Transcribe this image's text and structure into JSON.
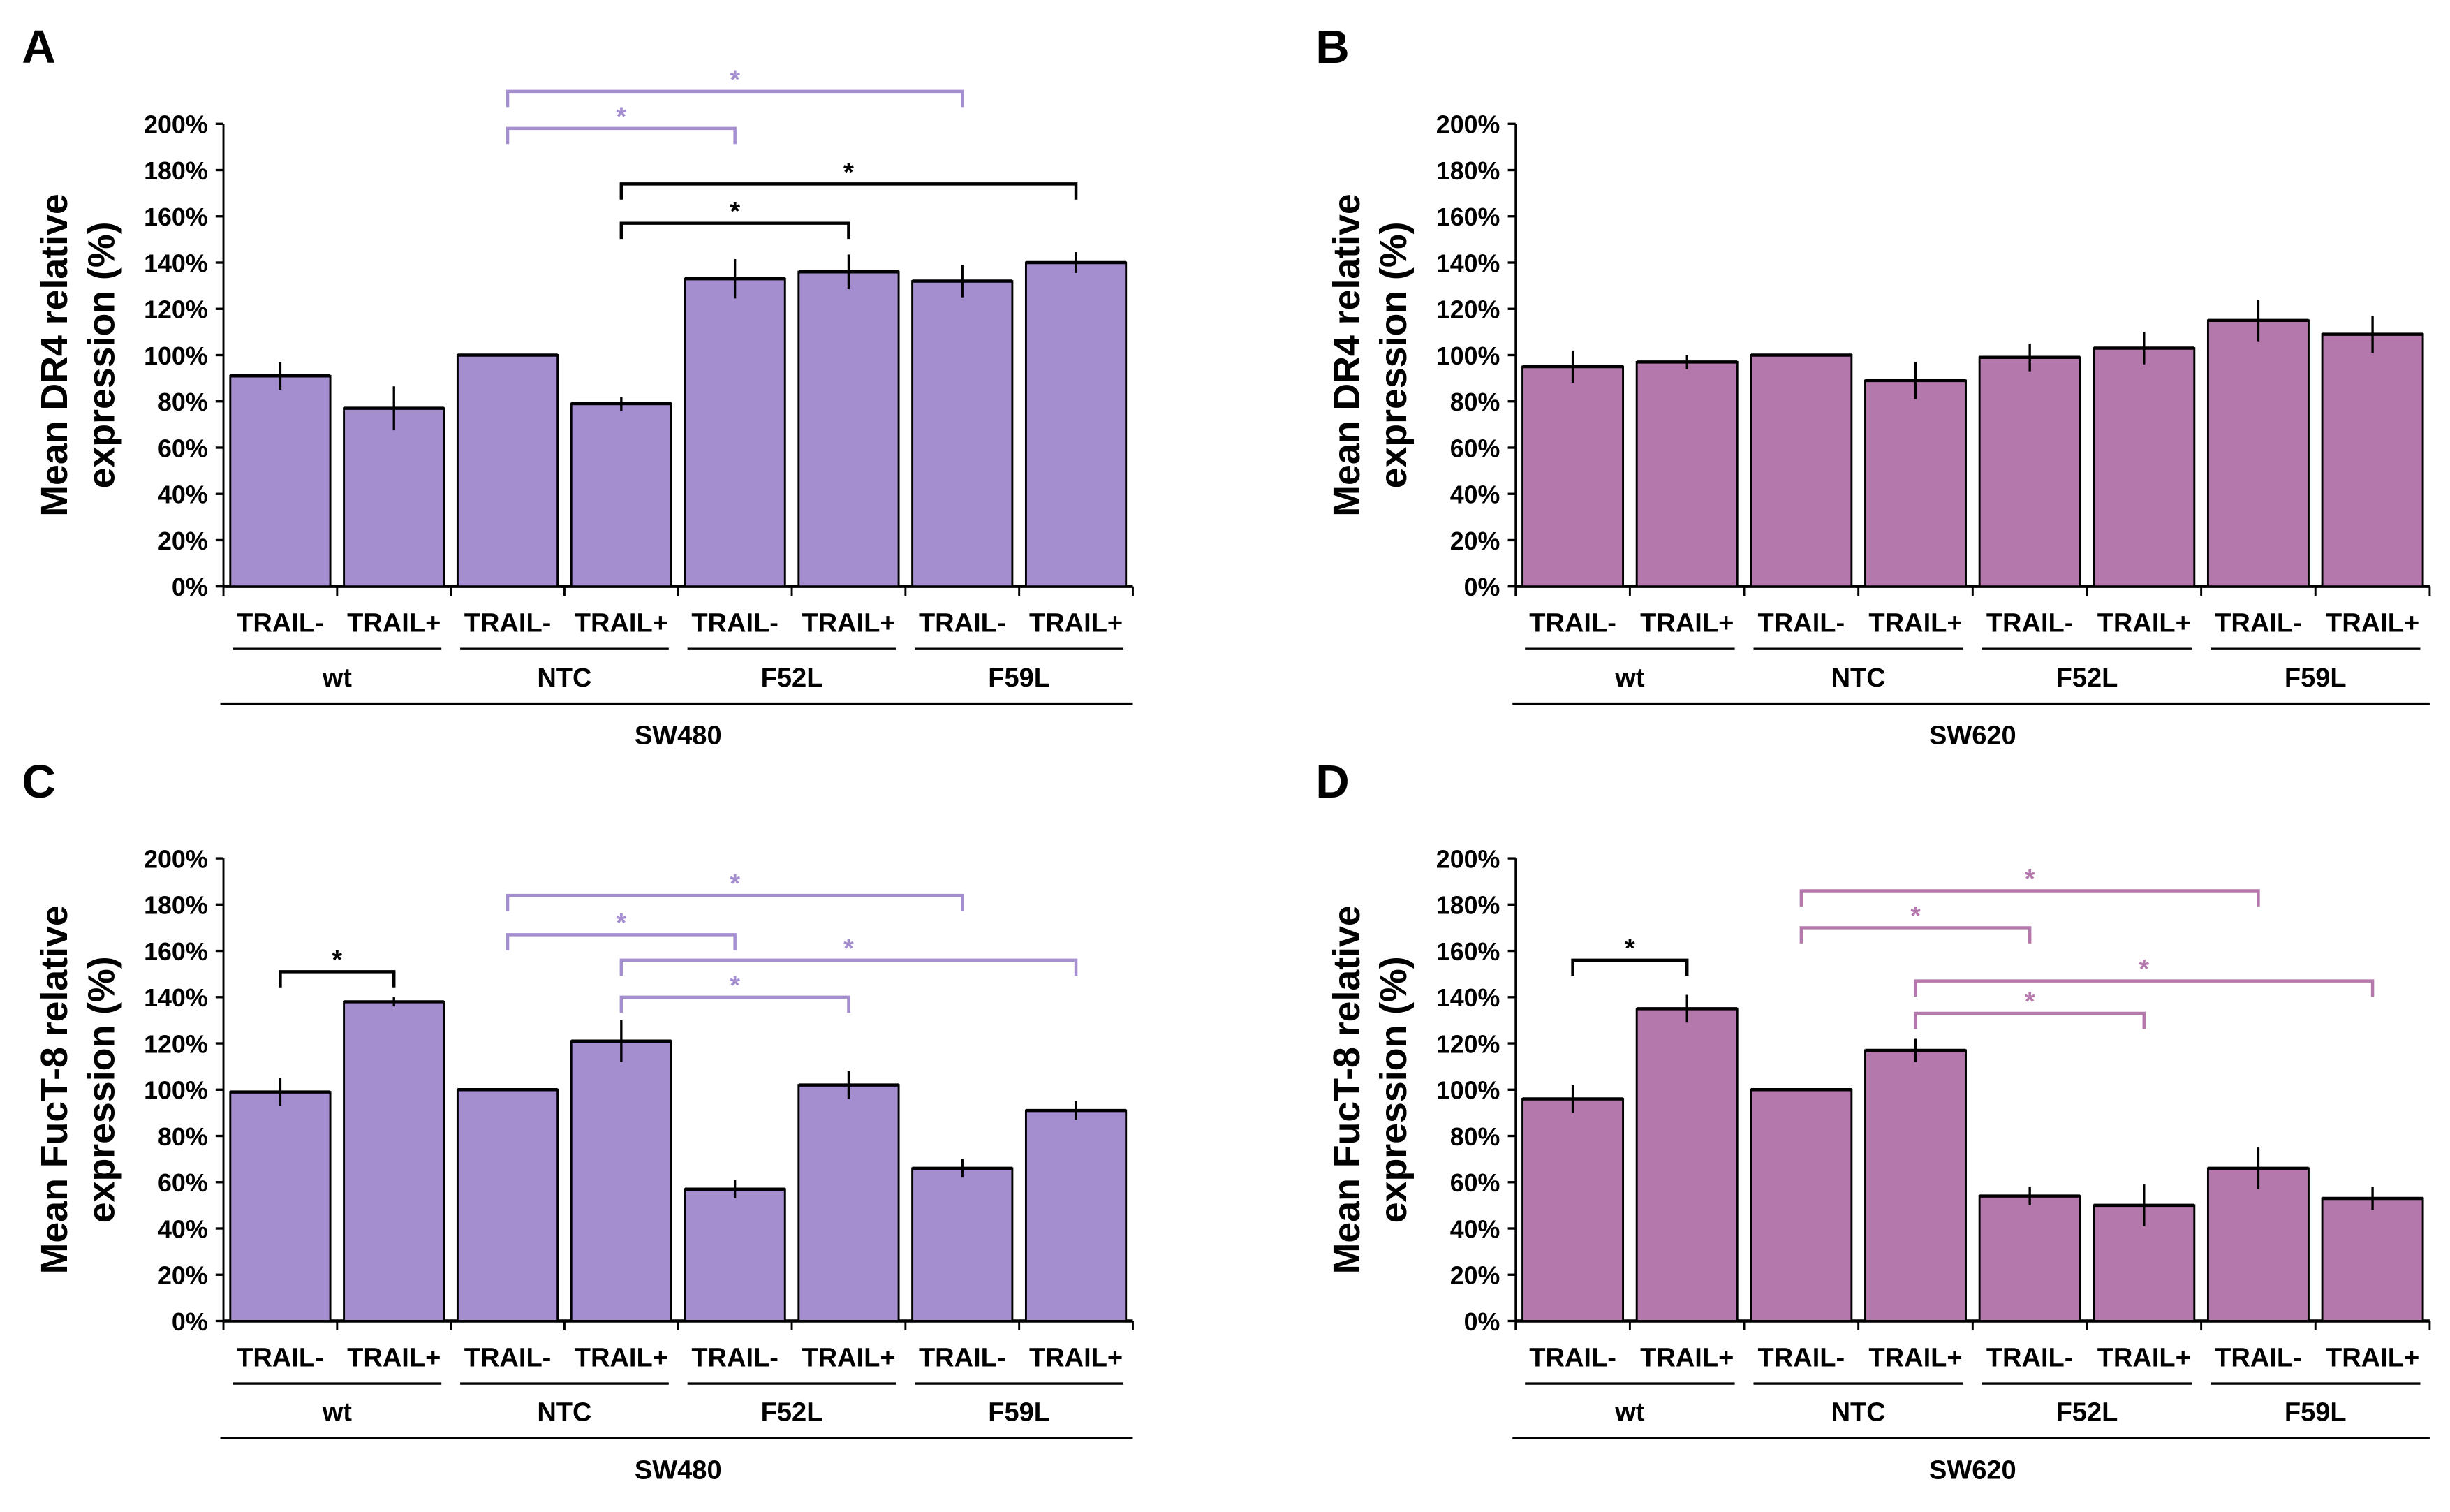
{
  "chart_data": [
    {
      "panel": "A",
      "type": "bar",
      "ylabel": [
        "Mean DR4 relative",
        "expression (%)"
      ],
      "ylim": [
        0,
        200
      ],
      "yticks": [
        0,
        20,
        40,
        60,
        80,
        100,
        120,
        140,
        160,
        180,
        200
      ],
      "ytick_suffix": "%",
      "categories": [
        "TRAIL-",
        "TRAIL+",
        "TRAIL-",
        "TRAIL+",
        "TRAIL-",
        "TRAIL+",
        "TRAIL-",
        "TRAIL+"
      ],
      "groups": [
        "wt",
        "NTC",
        "F52L",
        "F59L"
      ],
      "cell_line": "SW480",
      "color": "#A48ED0",
      "values": [
        91,
        77,
        100,
        79,
        133,
        136,
        132,
        140
      ],
      "errors": [
        6,
        9.5,
        0,
        3,
        8.5,
        7.5,
        7,
        4.5
      ],
      "significance": [
        {
          "from": 2,
          "to": 6,
          "level": 214,
          "label": "*",
          "color": "#A48ED0"
        },
        {
          "from": 2,
          "to": 4,
          "level": 198,
          "label": "*",
          "color": "#A48ED0"
        },
        {
          "from": 3,
          "to": 7,
          "level": 174,
          "label": "*",
          "color": "#000000"
        },
        {
          "from": 3,
          "to": 5,
          "level": 157,
          "label": "*",
          "color": "#000000"
        }
      ]
    },
    {
      "panel": "B",
      "type": "bar",
      "ylabel": [
        "Mean DR4 relative",
        "expression (%)"
      ],
      "ylim": [
        0,
        200
      ],
      "yticks": [
        0,
        20,
        40,
        60,
        80,
        100,
        120,
        140,
        160,
        180,
        200
      ],
      "ytick_suffix": "%",
      "categories": [
        "TRAIL-",
        "TRAIL+",
        "TRAIL-",
        "TRAIL+",
        "TRAIL-",
        "TRAIL+",
        "TRAIL-",
        "TRAIL+"
      ],
      "groups": [
        "wt",
        "NTC",
        "F52L",
        "F59L"
      ],
      "cell_line": "SW620",
      "color": "#B478AC",
      "values": [
        95,
        97,
        100,
        89,
        99,
        103,
        115,
        109
      ],
      "errors": [
        7,
        3,
        0,
        8,
        6,
        7,
        9,
        8
      ],
      "significance": []
    },
    {
      "panel": "C",
      "type": "bar",
      "ylabel": [
        "Mean FucT-8 relative",
        "expression (%)"
      ],
      "ylim": [
        0,
        200
      ],
      "yticks": [
        0,
        20,
        40,
        60,
        80,
        100,
        120,
        140,
        160,
        180,
        200
      ],
      "ytick_suffix": "%",
      "categories": [
        "TRAIL-",
        "TRAIL+",
        "TRAIL-",
        "TRAIL+",
        "TRAIL-",
        "TRAIL+",
        "TRAIL-",
        "TRAIL+"
      ],
      "groups": [
        "wt",
        "NTC",
        "F52L",
        "F59L"
      ],
      "cell_line": "SW480",
      "color": "#A48ED0",
      "values": [
        99,
        138,
        100,
        121,
        57,
        102,
        66,
        91
      ],
      "errors": [
        6,
        2,
        0,
        9,
        4,
        6,
        4,
        4
      ],
      "significance": [
        {
          "from": 0,
          "to": 1,
          "level": 151,
          "label": "*",
          "color": "#000000"
        },
        {
          "from": 2,
          "to": 6,
          "level": 184,
          "label": "*",
          "color": "#A48ED0"
        },
        {
          "from": 2,
          "to": 4,
          "level": 167,
          "label": "*",
          "color": "#A48ED0"
        },
        {
          "from": 3,
          "to": 7,
          "level": 156,
          "label": "*",
          "color": "#A48ED0"
        },
        {
          "from": 3,
          "to": 5,
          "level": 140,
          "label": "*",
          "color": "#A48ED0"
        }
      ]
    },
    {
      "panel": "D",
      "type": "bar",
      "ylabel": [
        "Mean FucT-8 relative",
        "expression (%)"
      ],
      "ylim": [
        0,
        200
      ],
      "yticks": [
        0,
        20,
        40,
        60,
        80,
        100,
        120,
        140,
        160,
        180,
        200
      ],
      "ytick_suffix": "%",
      "categories": [
        "TRAIL-",
        "TRAIL+",
        "TRAIL-",
        "TRAIL+",
        "TRAIL-",
        "TRAIL+",
        "TRAIL-",
        "TRAIL+"
      ],
      "groups": [
        "wt",
        "NTC",
        "F52L",
        "F59L"
      ],
      "cell_line": "SW620",
      "color": "#B478AC",
      "values": [
        96,
        135,
        100,
        117,
        54,
        50,
        66,
        53
      ],
      "errors": [
        6,
        6,
        0,
        5,
        4,
        9,
        9,
        5
      ],
      "significance": [
        {
          "from": 0,
          "to": 1,
          "level": 156,
          "label": "*",
          "color": "#000000"
        },
        {
          "from": 2,
          "to": 6,
          "level": 186,
          "label": "*",
          "color": "#B478AC"
        },
        {
          "from": 2,
          "to": 4,
          "level": 170,
          "label": "*",
          "color": "#B478AC"
        },
        {
          "from": 3,
          "to": 7,
          "level": 147,
          "label": "*",
          "color": "#B478AC"
        },
        {
          "from": 3,
          "to": 5,
          "level": 133,
          "label": "*",
          "color": "#B478AC"
        }
      ]
    }
  ]
}
